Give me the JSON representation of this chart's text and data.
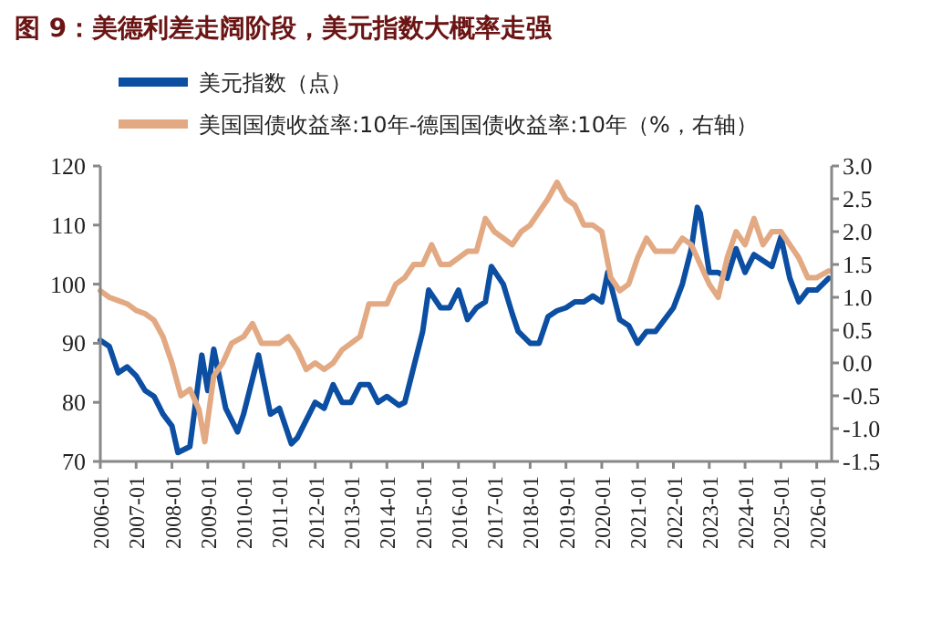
{
  "chart_data": {
    "type": "line",
    "title": "图 9：美德利差走阔阶段，美元指数大概率走强",
    "legend": "top",
    "xlim": [
      "2006-01",
      "2026-06"
    ],
    "xticks": [
      "2006-01",
      "2007-01",
      "2008-01",
      "2009-01",
      "2010-01",
      "2011-01",
      "2012-01",
      "2013-01",
      "2014-01",
      "2015-01",
      "2016-01",
      "2017-01",
      "2018-01",
      "2019-01",
      "2020-01",
      "2021-01",
      "2022-01",
      "2023-01",
      "2024-01",
      "2025-01",
      "2026-01"
    ],
    "ylim": [
      70,
      120
    ],
    "yticks": [
      70,
      80,
      90,
      100,
      110,
      120
    ],
    "y2lim": [
      -1.5,
      3.0
    ],
    "y2ticks": [
      -1.5,
      {
        "value": -1,
        "label": "-1.0"
      },
      -0.5,
      {
        "value": 0,
        "label": "0.0"
      },
      0.5,
      {
        "value": 1,
        "label": "1.0"
      },
      1.5,
      {
        "value": 2,
        "label": "2.0"
      },
      2.5,
      {
        "value": 3,
        "label": "3.0"
      }
    ],
    "series": [
      {
        "name": "美元指数（点）",
        "color": "#0b4ea2",
        "x": [
          "2006-01",
          "2006-04",
          "2006-07",
          "2006-10",
          "2007-01",
          "2007-04",
          "2007-07",
          "2007-10",
          "2008-01",
          "2008-03",
          "2008-07",
          "2008-11",
          "2009-01",
          "2009-03",
          "2009-07",
          "2009-11",
          "2010-01",
          "2010-06",
          "2010-10",
          "2011-01",
          "2011-05",
          "2011-07",
          "2011-10",
          "2012-01",
          "2012-04",
          "2012-07",
          "2012-10",
          "2013-01",
          "2013-04",
          "2013-07",
          "2013-10",
          "2014-01",
          "2014-05",
          "2014-07",
          "2014-10",
          "2015-01",
          "2015-03",
          "2015-07",
          "2015-10",
          "2016-01",
          "2016-04",
          "2016-07",
          "2016-10",
          "2016-12",
          "2017-04",
          "2017-07",
          "2017-09",
          "2018-01",
          "2018-04",
          "2018-07",
          "2018-10",
          "2019-01",
          "2019-04",
          "2019-07",
          "2019-10",
          "2020-01",
          "2020-03",
          "2020-07",
          "2020-10",
          "2021-01",
          "2021-04",
          "2021-07",
          "2021-10",
          "2022-01",
          "2022-04",
          "2022-07",
          "2022-09",
          "2022-10",
          "2023-01",
          "2023-04",
          "2023-07",
          "2023-10",
          "2024-01",
          "2024-04",
          "2024-07",
          "2024-10",
          "2025-01",
          "2025-04",
          "2025-07",
          "2025-10",
          "2026-01",
          "2026-05"
        ],
        "values": [
          90.5,
          89.5,
          85,
          86,
          84.5,
          82,
          81,
          78,
          76,
          71.5,
          72.5,
          88,
          82,
          89,
          79,
          75,
          78,
          88,
          78,
          79,
          73,
          74,
          77,
          80,
          79,
          83,
          80,
          80,
          83,
          83,
          80,
          81,
          79.5,
          80,
          86,
          92,
          99,
          96,
          96,
          99,
          94,
          96,
          97,
          103,
          100,
          95,
          92,
          90,
          90,
          94.5,
          95.5,
          96,
          97,
          97,
          98,
          97,
          102,
          94,
          93,
          90,
          92,
          92,
          94,
          96,
          100,
          106,
          113,
          112,
          102,
          102,
          101,
          106,
          102,
          105,
          104,
          103,
          108,
          101,
          97,
          99,
          99,
          101
        ]
      },
      {
        "name": "美国国债收益率:10年-德国国债收益率:10年（%，右轴）",
        "color": "#e2a983",
        "axis": "y2",
        "x": [
          "2006-01",
          "2006-04",
          "2006-07",
          "2006-10",
          "2007-01",
          "2007-04",
          "2007-07",
          "2007-10",
          "2008-01",
          "2008-04",
          "2008-07",
          "2008-10",
          "2008-12",
          "2009-03",
          "2009-06",
          "2009-09",
          "2010-01",
          "2010-04",
          "2010-07",
          "2010-10",
          "2011-01",
          "2011-04",
          "2011-07",
          "2011-10",
          "2012-01",
          "2012-04",
          "2012-07",
          "2012-10",
          "2013-01",
          "2013-04",
          "2013-07",
          "2013-10",
          "2014-01",
          "2014-04",
          "2014-07",
          "2014-10",
          "2015-01",
          "2015-04",
          "2015-07",
          "2015-10",
          "2016-01",
          "2016-04",
          "2016-07",
          "2016-10",
          "2017-01",
          "2017-04",
          "2017-07",
          "2017-10",
          "2018-01",
          "2018-04",
          "2018-07",
          "2018-10",
          "2019-01",
          "2019-04",
          "2019-07",
          "2019-10",
          "2020-01",
          "2020-04",
          "2020-07",
          "2020-10",
          "2021-01",
          "2021-04",
          "2021-07",
          "2021-10",
          "2022-01",
          "2022-04",
          "2022-07",
          "2022-10",
          "2023-01",
          "2023-04",
          "2023-07",
          "2023-10",
          "2024-01",
          "2024-04",
          "2024-07",
          "2024-10",
          "2025-01",
          "2025-04",
          "2025-07",
          "2025-10",
          "2026-01",
          "2026-05"
        ],
        "values": [
          1.1,
          1.0,
          0.95,
          0.9,
          0.8,
          0.75,
          0.65,
          0.4,
          0.0,
          -0.5,
          -0.4,
          -0.7,
          -1.2,
          -0.2,
          0.0,
          0.3,
          0.4,
          0.6,
          0.3,
          0.3,
          0.3,
          0.4,
          0.2,
          -0.1,
          0.0,
          -0.1,
          0.0,
          0.2,
          0.3,
          0.4,
          0.9,
          0.9,
          0.9,
          1.2,
          1.3,
          1.5,
          1.5,
          1.8,
          1.5,
          1.5,
          1.6,
          1.7,
          1.7,
          2.2,
          2.0,
          1.9,
          1.8,
          2.0,
          2.1,
          2.3,
          2.5,
          2.75,
          2.5,
          2.4,
          2.1,
          2.1,
          2.0,
          1.3,
          1.1,
          1.2,
          1.6,
          1.9,
          1.7,
          1.7,
          1.7,
          1.9,
          1.8,
          1.5,
          1.2,
          1.0,
          1.6,
          2.0,
          1.8,
          2.2,
          1.8,
          2.0,
          2.0,
          1.8,
          1.6,
          1.3,
          1.3,
          1.4
        ]
      }
    ]
  }
}
